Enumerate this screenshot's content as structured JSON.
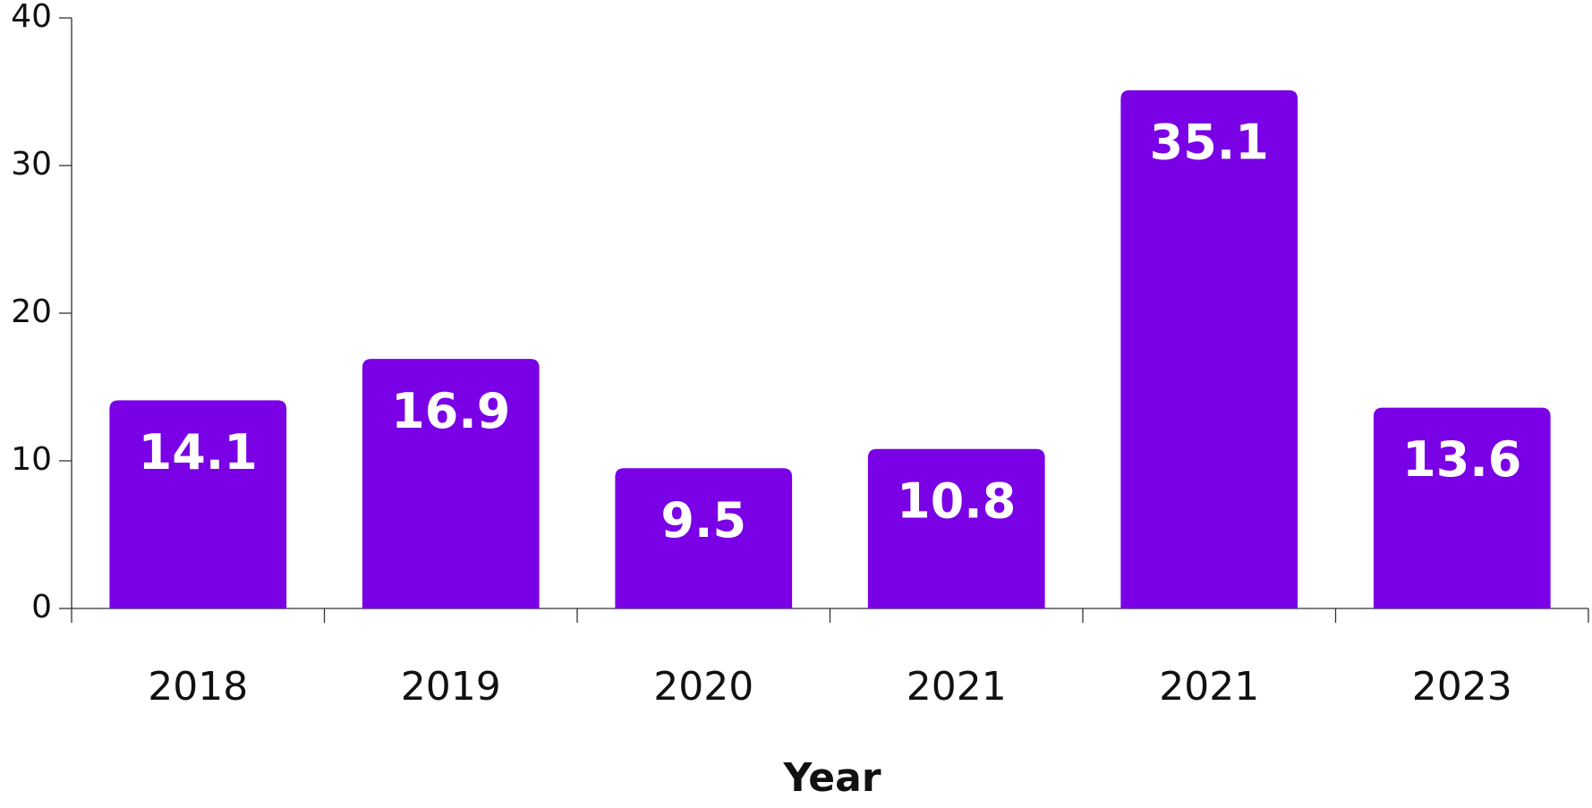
{
  "chart_data": {
    "type": "bar",
    "x_label": "Year",
    "categories": [
      "2018",
      "2019",
      "2020",
      "2021",
      "2021",
      "2023"
    ],
    "values": [
      14.1,
      16.9,
      9.5,
      10.8,
      35.1,
      13.6
    ],
    "color": "#7a00e6",
    "ylim": [
      0,
      40
    ],
    "yticks": [
      0,
      10,
      20,
      30,
      40
    ],
    "grid": false
  }
}
